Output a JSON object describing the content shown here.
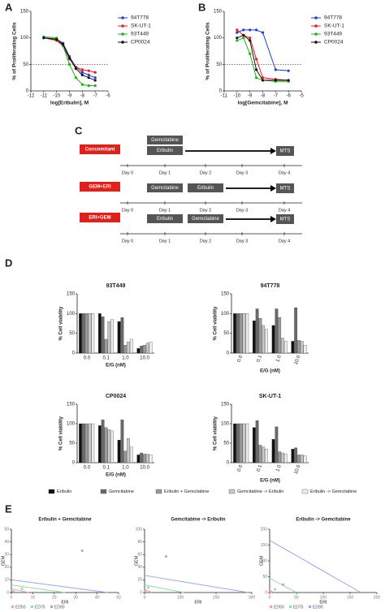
{
  "panel_labels": [
    "A",
    "B",
    "C",
    "D",
    "E"
  ],
  "schedule": {
    "rows": [
      {
        "label": "Concomitant",
        "treatments": [
          "Gemcitabine",
          "Eribulin"
        ]
      },
      {
        "label": "GEM+ERI",
        "treatments": [
          "Gemcitabine",
          "Eribulin"
        ]
      },
      {
        "label": "ERI+GEM",
        "treatments": [
          "Eribulin",
          "Gemcitabine"
        ]
      }
    ],
    "readout": "MTS",
    "days": [
      "Day 0",
      "Day 1",
      "Day 2",
      "Day 3",
      "Day 4"
    ]
  },
  "chart_data": [
    {
      "type": "line",
      "xlabel": "log[Eribulin], M",
      "ylabel": "% of Proliferating Cells",
      "x": [
        -11,
        -10,
        -9.5,
        -9,
        -8.5,
        -8,
        -7.5,
        -7
      ],
      "xlim": [
        -12,
        -6
      ],
      "xticks": [
        -12,
        -11,
        -10,
        -9,
        -8,
        -7,
        -6
      ],
      "ylim": [
        0,
        150
      ],
      "yticks": [
        0,
        50,
        100,
        150
      ],
      "ref_line": 50,
      "series": [
        {
          "name": "94T778",
          "color": "#1f3fd0",
          "values": [
            100,
            98,
            90,
            65,
            45,
            35,
            30,
            25
          ]
        },
        {
          "name": "SK-UT-1",
          "color": "#e02020",
          "values": [
            100,
            95,
            85,
            60,
            45,
            40,
            38,
            35
          ]
        },
        {
          "name": "93T449",
          "color": "#20b020",
          "values": [
            102,
            100,
            85,
            50,
            25,
            12,
            10,
            10
          ]
        },
        {
          "name": "CP0024",
          "color": "#111111",
          "values": [
            100,
            97,
            88,
            62,
            42,
            30,
            25,
            20
          ]
        }
      ]
    },
    {
      "type": "line",
      "xlabel": "log[Gemcitabine], M",
      "ylabel": "% of Proliferating Cells",
      "x": [
        -10,
        -9.5,
        -9,
        -8.5,
        -8,
        -7,
        -6
      ],
      "xlim": [
        -11,
        -5
      ],
      "xticks": [
        -11,
        -10,
        -9,
        -8,
        -7,
        -6,
        -5
      ],
      "ylim": [
        0,
        150
      ],
      "yticks": [
        0,
        50,
        100,
        150
      ],
      "ref_line": 50,
      "series": [
        {
          "name": "94T778",
          "color": "#1f3fd0",
          "values": [
            110,
            115,
            115,
            115,
            110,
            40,
            38
          ]
        },
        {
          "name": "SK-UT-1",
          "color": "#e02020",
          "values": [
            115,
            105,
            100,
            60,
            25,
            22,
            20
          ]
        },
        {
          "name": "93T449",
          "color": "#20b020",
          "values": [
            95,
            100,
            70,
            25,
            20,
            18,
            18
          ]
        },
        {
          "name": "CP0024",
          "color": "#111111",
          "values": [
            100,
            105,
            95,
            40,
            20,
            20,
            20
          ]
        }
      ]
    },
    {
      "type": "bar_panels",
      "xlabel": "E/G (nM)",
      "ylabel": "% Cell viability",
      "categories": [
        "0.0",
        "0.1",
        "1.0",
        "10.0"
      ],
      "ylim": [
        0,
        150
      ],
      "yticks": [
        0,
        50,
        100,
        150
      ],
      "series": [
        {
          "name": "Eribulin",
          "color": "#111111"
        },
        {
          "name": "Gemcitabine",
          "color": "#6a6a6a"
        },
        {
          "name": "Eribulin + Gemcitabine",
          "color": "#9a9a9a"
        },
        {
          "name": "Gemcitabine -> Eribulin",
          "color": "#c8c8c8"
        },
        {
          "name": "Eribulin -> Gemcitabine",
          "color": "#ececec"
        }
      ],
      "panels": [
        {
          "title": "93T449",
          "values": [
            [
              100,
              100,
              80,
              12
            ],
            [
              100,
              92,
              90,
              18
            ],
            [
              100,
              35,
              20,
              20
            ],
            [
              100,
              80,
              28,
              25
            ],
            [
              100,
              85,
              35,
              28
            ]
          ]
        },
        {
          "title": "94T778",
          "values": [
            [
              100,
              82,
              70,
              30
            ],
            [
              100,
              112,
              112,
              115
            ],
            [
              100,
              88,
              90,
              32
            ],
            [
              100,
              70,
              38,
              30
            ],
            [
              100,
              60,
              30,
              20
            ]
          ]
        },
        {
          "title": "CP0024",
          "values": [
            [
              100,
              95,
              58,
              20
            ],
            [
              100,
              110,
              110,
              25
            ],
            [
              100,
              90,
              30,
              22
            ],
            [
              100,
              85,
              62,
              22
            ],
            [
              100,
              82,
              40,
              20
            ]
          ]
        },
        {
          "title": "SK-UT-1",
          "values": [
            [
              100,
              90,
              60,
              35
            ],
            [
              100,
              108,
              92,
              38
            ],
            [
              100,
              45,
              28,
              20
            ],
            [
              100,
              40,
              25,
              20
            ],
            [
              100,
              35,
              22,
              18
            ]
          ]
        }
      ]
    },
    {
      "type": "isobologram_panels",
      "xlabel": "ERI",
      "ylabel": "GEM",
      "series": [
        {
          "name": "ED50",
          "color": "#f0a0b0"
        },
        {
          "name": "ED75",
          "color": "#90e0a0"
        },
        {
          "name": "ED90",
          "color": "#a0a0f0"
        }
      ],
      "panels": [
        {
          "title": "Eribulin + Gemcitabine",
          "xlim": [
            0,
            50
          ],
          "xticks": [
            0,
            10,
            20,
            30,
            40,
            50
          ],
          "ylim": [
            0,
            50
          ],
          "yticks": [
            0,
            10,
            20,
            30,
            40,
            50
          ],
          "x_intercept": [
            8,
            25,
            45
          ],
          "y_intercept": [
            3,
            6,
            10
          ],
          "point_x": [
            1,
            5,
            33
          ],
          "point_y": [
            1,
            3,
            33
          ]
        },
        {
          "title": "Gemcitabine -> Eribulin",
          "xlim": [
            0,
            300
          ],
          "xticks": [
            0,
            100,
            200,
            300
          ],
          "ylim": [
            0,
            100
          ],
          "yticks": [
            0,
            20,
            40,
            60,
            80,
            100
          ],
          "x_intercept": [
            20,
            110,
            290
          ],
          "y_intercept": [
            5,
            12,
            27
          ],
          "point_x": [
            2,
            10,
            60
          ],
          "point_y": [
            2,
            8,
            57
          ]
        },
        {
          "title": "Eribulin -> Gemcitabine",
          "xlim": [
            0,
            200
          ],
          "xticks": [
            0,
            50,
            100,
            150,
            200
          ],
          "ylim": [
            0,
            200
          ],
          "yticks": [
            0,
            50,
            100,
            150,
            200
          ],
          "x_intercept": [
            8,
            50,
            170
          ],
          "y_intercept": [
            8,
            45,
            165
          ],
          "point_x": [
            2,
            10,
            25
          ],
          "point_y": [
            2,
            10,
            25
          ]
        }
      ]
    }
  ]
}
